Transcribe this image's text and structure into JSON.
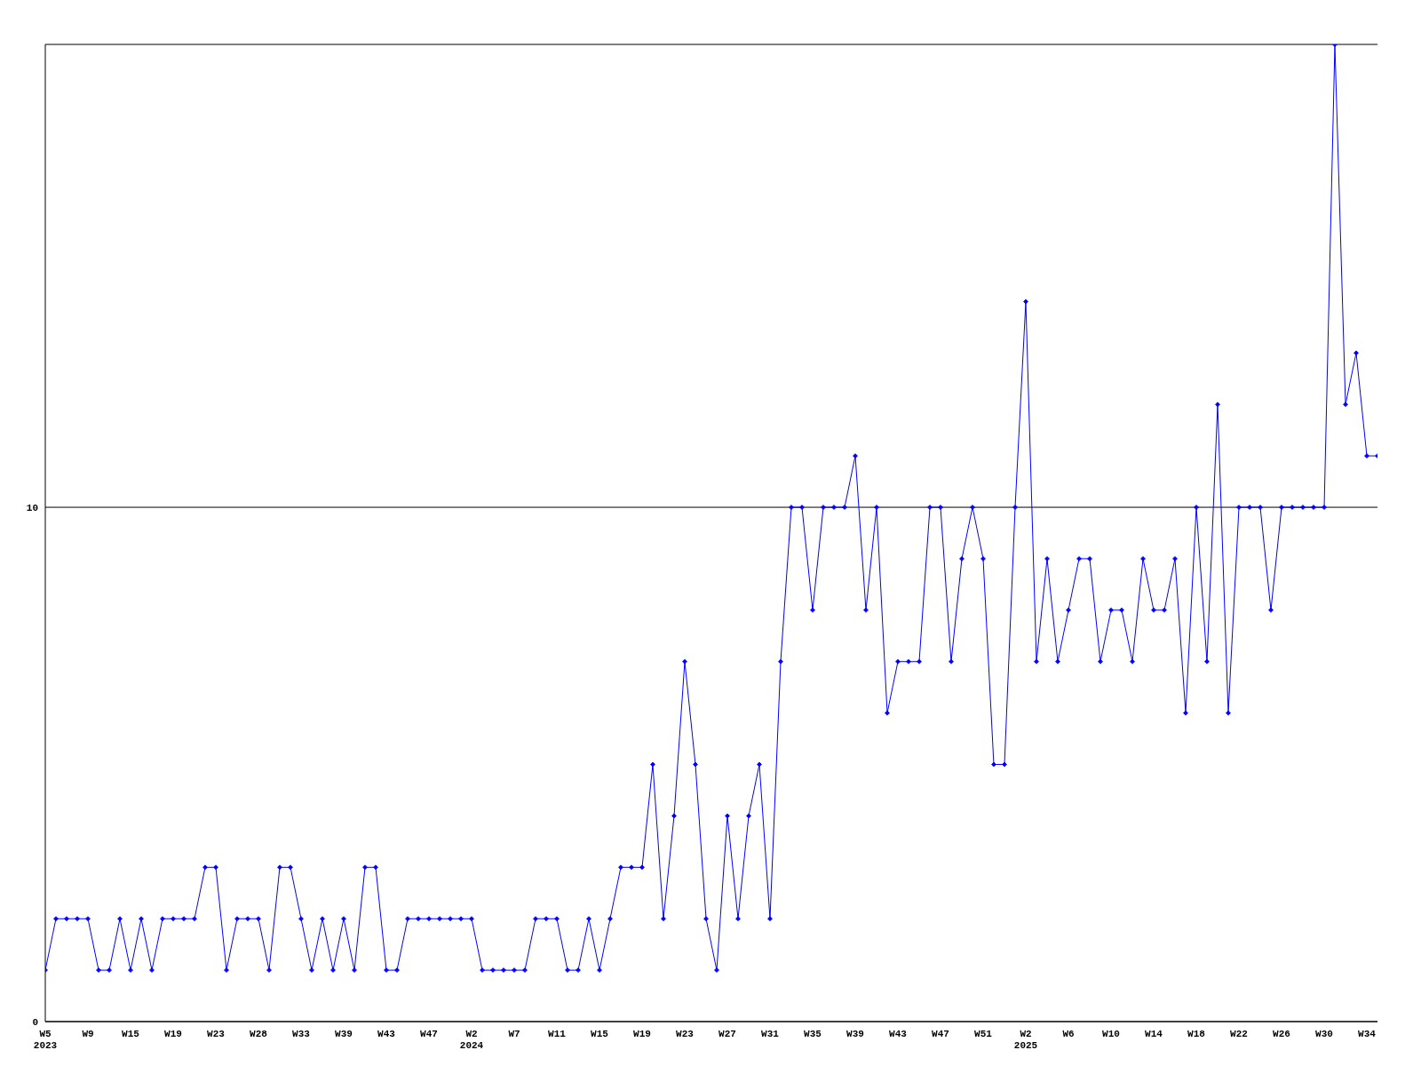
{
  "chart_data": {
    "type": "line",
    "categories": [
      "W5\n2023",
      null,
      null,
      null,
      "W9",
      null,
      null,
      null,
      "W15",
      null,
      null,
      null,
      "W19",
      null,
      null,
      null,
      "W23",
      null,
      null,
      null,
      "W28",
      null,
      null,
      null,
      "W33",
      null,
      null,
      null,
      "W39",
      null,
      null,
      null,
      "W43",
      null,
      null,
      null,
      "W47",
      null,
      null,
      null,
      "W2\n2024",
      null,
      null,
      null,
      "W7",
      null,
      null,
      null,
      "W11",
      null,
      null,
      null,
      "W15",
      null,
      null,
      null,
      "W19",
      null,
      null,
      null,
      "W23",
      null,
      null,
      null,
      "W27",
      null,
      null,
      null,
      "W31",
      null,
      null,
      null,
      "W35",
      null,
      null,
      null,
      "W39",
      null,
      null,
      null,
      "W43",
      null,
      null,
      null,
      "W47",
      null,
      null,
      null,
      "W51",
      null,
      null,
      null,
      "W2\n2025",
      null,
      null,
      null,
      "W6",
      null,
      null,
      null,
      "W10",
      null,
      null,
      null,
      "W14",
      null,
      null,
      null,
      "W18",
      null,
      null,
      null,
      "W22",
      null,
      null,
      null,
      "W26",
      null,
      null,
      null,
      "W30",
      null,
      null,
      null,
      "W34",
      null
    ],
    "series": [
      {
        "color": "#0000ff",
        "values": [
          1,
          2,
          2,
          2,
          2,
          1,
          1,
          2,
          1,
          2,
          1,
          2,
          2,
          2,
          2,
          3,
          3,
          1,
          2,
          2,
          2,
          1,
          3,
          3,
          2,
          1,
          2,
          1,
          2,
          1,
          3,
          3,
          1,
          1,
          2,
          2,
          2,
          2,
          2,
          2,
          2,
          1,
          1,
          1,
          1,
          1,
          2,
          2,
          2,
          1,
          1,
          2,
          1,
          2,
          3,
          3,
          3,
          5,
          2,
          4,
          7,
          5,
          2,
          1,
          4,
          2,
          4,
          5,
          2,
          7,
          10,
          10,
          8,
          10,
          10,
          10,
          11,
          8,
          10,
          6,
          7,
          7,
          7,
          10,
          10,
          7,
          9,
          10,
          9,
          5,
          5,
          10,
          14,
          7,
          9,
          7,
          8,
          9,
          9,
          7,
          8,
          8,
          7,
          9,
          8,
          8,
          9,
          6,
          10,
          7,
          12,
          6,
          10,
          10,
          10,
          8,
          10,
          10,
          10,
          10,
          10,
          19,
          12,
          13,
          11,
          11
        ]
      }
    ],
    "ylim": [
      0,
      19
    ],
    "yticks": [
      0,
      10
    ],
    "grid": "y",
    "legend": false,
    "marker": "diamond",
    "line_style": "solid"
  }
}
